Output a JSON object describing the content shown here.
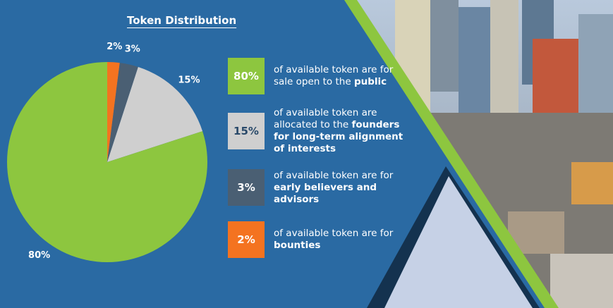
{
  "chart_data": {
    "type": "pie",
    "title": "Token Distribution",
    "values": [
      80,
      15,
      3,
      2
    ],
    "value_labels": [
      "80%",
      "15%",
      "3%",
      "2%"
    ],
    "colors": [
      "#8dc63f",
      "#cfcfcf",
      "#4a5f73",
      "#f47320"
    ],
    "descriptions": [
      [
        {
          "text": "of available token are for sale open to the "
        },
        {
          "text": "public",
          "bold": true
        }
      ],
      [
        {
          "text": "of available token are allocated to the "
        },
        {
          "text": "founders for long-term alignment of interests",
          "bold": true
        }
      ],
      [
        {
          "text": "of available token are for "
        },
        {
          "text": "early believers and advisors",
          "bold": true
        }
      ],
      [
        {
          "text": "of available token are for "
        },
        {
          "text": "bounties",
          "bold": true
        }
      ]
    ]
  }
}
